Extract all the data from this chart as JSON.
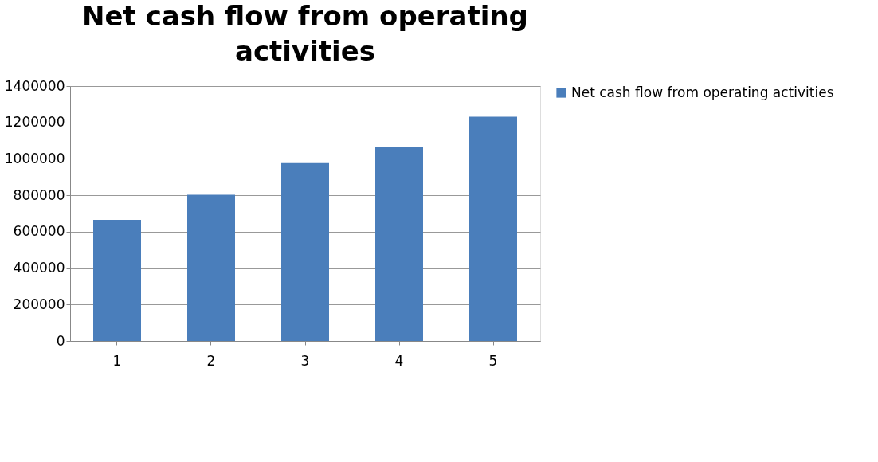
{
  "chart_data": {
    "type": "bar",
    "title": "Net cash flow from operating activities",
    "categories": [
      "1",
      "2",
      "3",
      "4",
      "5"
    ],
    "series": [
      {
        "name": "Net cash flow from operating activities",
        "color": "#4a7ebb",
        "values": [
          665000,
          803000,
          977000,
          1066000,
          1232000
        ]
      }
    ],
    "ylim": [
      0,
      1400000
    ],
    "yticks": [
      0,
      200000,
      400000,
      600000,
      800000,
      1000000,
      1200000,
      1400000
    ],
    "grid": "y",
    "legend": "right"
  }
}
